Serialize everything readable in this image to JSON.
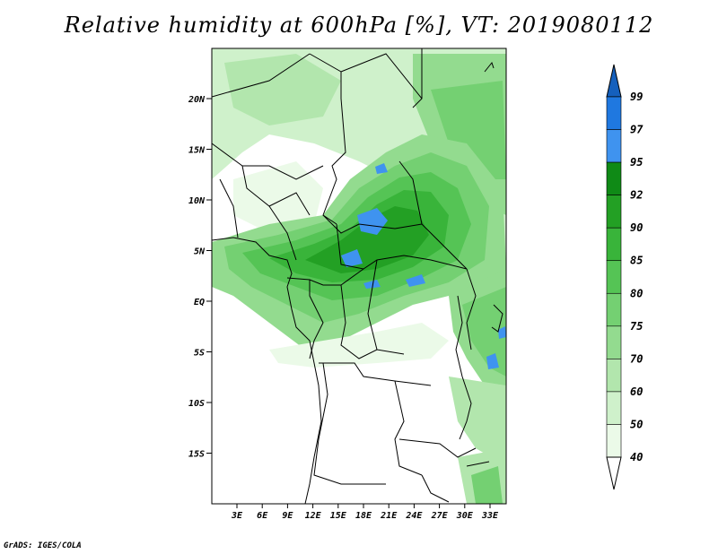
{
  "title": "Relative humidity at 600hPa [%], VT: 2019080112",
  "credit": "GrADS: IGES/COLA",
  "lat_labels": [
    "20N",
    "15N",
    "10N",
    "5N",
    "EQ",
    "5S",
    "10S",
    "15S"
  ],
  "lon_labels": [
    "3E",
    "6E",
    "9E",
    "12E",
    "15E",
    "18E",
    "21E",
    "24E",
    "27E",
    "30E",
    "33E"
  ],
  "colorbar": {
    "levels": [
      "99",
      "97",
      "95",
      "92",
      "90",
      "85",
      "80",
      "75",
      "70",
      "60",
      "50",
      "40"
    ],
    "colors": [
      "#1560bd",
      "#1f78e0",
      "#3f93ef",
      "#0f8a16",
      "#23a024",
      "#39b43a",
      "#55c455",
      "#74d072",
      "#93db8f",
      "#b2e6ad",
      "#cff1cb",
      "#ebfae8",
      "#ffffff"
    ]
  },
  "colors": {
    "background": "#ffffff",
    "border": "#000000"
  }
}
